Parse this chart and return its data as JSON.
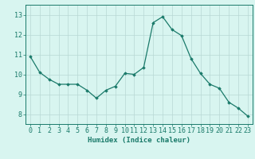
{
  "x": [
    0,
    1,
    2,
    3,
    4,
    5,
    6,
    7,
    8,
    9,
    10,
    11,
    12,
    13,
    14,
    15,
    16,
    17,
    18,
    19,
    20,
    21,
    22,
    23
  ],
  "y": [
    10.9,
    10.1,
    9.75,
    9.5,
    9.5,
    9.5,
    9.2,
    8.8,
    9.2,
    9.4,
    10.05,
    10.0,
    10.35,
    12.6,
    12.9,
    12.25,
    11.95,
    10.8,
    10.05,
    9.5,
    9.3,
    8.6,
    8.3,
    7.9
  ],
  "line_color": "#1a7a6a",
  "marker": "D",
  "marker_size": 1.8,
  "bg_color": "#d8f5f0",
  "grid_color": "#b8d8d4",
  "xlabel": "Humidex (Indice chaleur)",
  "xlim": [
    -0.5,
    23.5
  ],
  "ylim": [
    7.5,
    13.5
  ],
  "yticks": [
    8,
    9,
    10,
    11,
    12,
    13
  ],
  "xtick_labels": [
    "0",
    "1",
    "2",
    "3",
    "4",
    "5",
    "6",
    "7",
    "8",
    "9",
    "10",
    "11",
    "12",
    "13",
    "14",
    "15",
    "16",
    "17",
    "18",
    "19",
    "20",
    "21",
    "22",
    "23"
  ],
  "xlabel_fontsize": 6.5,
  "tick_fontsize": 6.0
}
